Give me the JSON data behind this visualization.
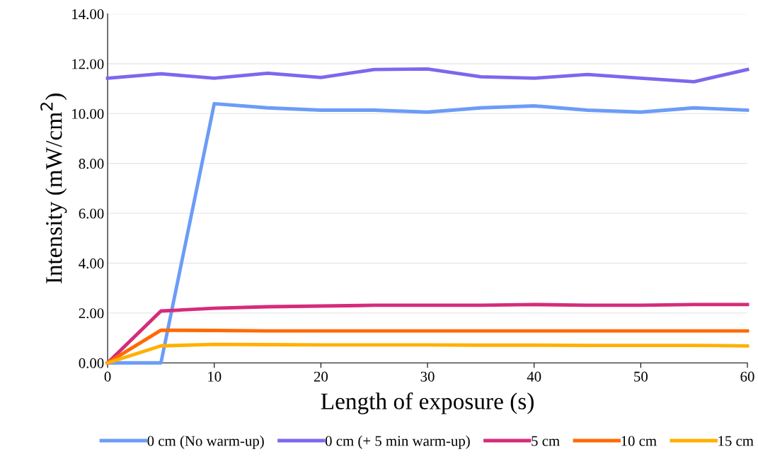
{
  "chart_data": {
    "type": "line",
    "xlabel": "Length of exposure (s)",
    "ylabel": "Intensity (mW/cm$^{2}$)",
    "x": [
      0,
      5,
      10,
      15,
      20,
      25,
      30,
      35,
      40,
      45,
      50,
      55,
      60
    ],
    "xlim": [
      0,
      60
    ],
    "xticks": [
      0,
      10,
      20,
      30,
      40,
      50,
      60
    ],
    "ylim": [
      0,
      14
    ],
    "yticks": [
      {
        "value": 0,
        "label": "0.00"
      },
      {
        "value": 2,
        "label": "2.00"
      },
      {
        "value": 4,
        "label": "4.00"
      },
      {
        "value": 6,
        "label": "6.00"
      },
      {
        "value": 8,
        "label": "8.00"
      },
      {
        "value": 10,
        "label": "10.00"
      },
      {
        "value": 12,
        "label": "12.00"
      },
      {
        "value": 14,
        "label": "14.00"
      }
    ],
    "grid": "y",
    "legend": "bottom",
    "marker": "none",
    "line_style": "solid",
    "series": [
      {
        "name": "0 cm (No warm-up)",
        "color": "#6b9cf7",
        "values": [
          0,
          0,
          10.4,
          10.23,
          10.14,
          10.14,
          10.06,
          10.23,
          10.31,
          10.14,
          10.06,
          10.23,
          10.14
        ]
      },
      {
        "name": "0 cm (+ 5 min warm-up)",
        "color": "#7b68ee",
        "values": [
          11.42,
          11.6,
          11.42,
          11.62,
          11.45,
          11.77,
          11.79,
          11.48,
          11.42,
          11.57,
          11.42,
          11.28,
          11.77
        ]
      },
      {
        "name": "5 cm",
        "color": "#d62b7a",
        "values": [
          0,
          2.08,
          2.19,
          2.25,
          2.28,
          2.31,
          2.31,
          2.31,
          2.34,
          2.31,
          2.31,
          2.34,
          2.34
        ]
      },
      {
        "name": "10 cm",
        "color": "#ff6a00",
        "values": [
          0,
          1.31,
          1.3,
          1.28,
          1.28,
          1.28,
          1.28,
          1.28,
          1.28,
          1.28,
          1.28,
          1.28,
          1.28
        ]
      },
      {
        "name": "15 cm",
        "color": "#ffb000",
        "values": [
          0,
          0.68,
          0.74,
          0.73,
          0.72,
          0.72,
          0.72,
          0.71,
          0.71,
          0.7,
          0.7,
          0.7,
          0.68
        ]
      }
    ]
  }
}
